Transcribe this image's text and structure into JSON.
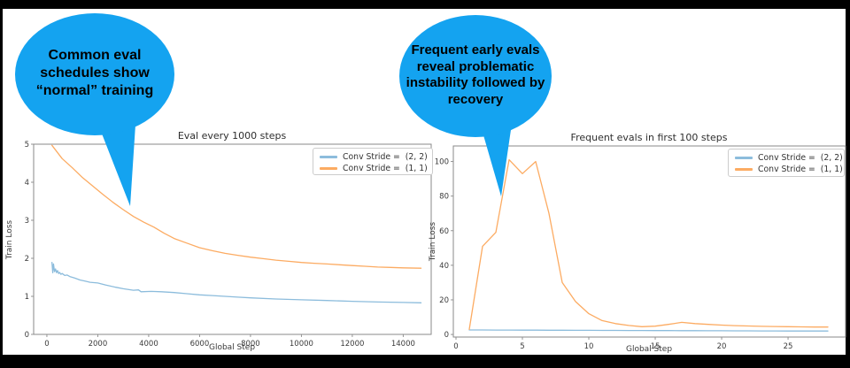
{
  "colors": {
    "frame": "#000000",
    "page_background": "#ffffff",
    "bubble_fill": "#14a3f0",
    "bubble_text": "#000000",
    "stride_2_2_line": "#8cbcdc",
    "stride_1_1_line": "#fcab62",
    "axis_text": "#3a3a3a",
    "spine": "#8a8a8a"
  },
  "bubbles": [
    {
      "lines": [
        "Common eval",
        "schedules show",
        "“normal” training"
      ]
    },
    {
      "lines": [
        "Frequent early evals",
        "reveal problematic",
        "instability followed by",
        "recovery"
      ]
    }
  ],
  "chart_data": [
    {
      "type": "line",
      "title": "Eval every 1000 steps",
      "xlabel": "Global Step",
      "ylabel": "Train Loss",
      "xlim": [
        -520,
        15100
      ],
      "ylim": [
        0,
        5
      ],
      "xticks": [
        0,
        2000,
        4000,
        6000,
        8000,
        10000,
        12000,
        14000
      ],
      "yticks": [
        0,
        1,
        2,
        3,
        4,
        5
      ],
      "grid": false,
      "legend_position": "upper right",
      "legend": [
        "Conv Stride =  (2, 2)",
        "Conv Stride =  (1, 1)"
      ],
      "series": [
        {
          "name": "Conv Stride = (2, 2)",
          "color_key": "stride_2_2_line",
          "x": [
            200,
            230,
            260,
            300,
            340,
            380,
            420,
            460,
            500,
            550,
            600,
            700,
            800,
            900,
            1000,
            1100,
            1300,
            1500,
            1700,
            2000,
            2300,
            2700,
            3000,
            3400,
            3600,
            3700,
            4100,
            4500,
            5000,
            5500,
            6000,
            6500,
            7000,
            7500,
            8000,
            9000,
            10000,
            11000,
            12000,
            13000,
            14000,
            14700
          ],
          "y": [
            1.89,
            1.62,
            1.85,
            1.65,
            1.72,
            1.62,
            1.68,
            1.6,
            1.63,
            1.58,
            1.6,
            1.55,
            1.56,
            1.52,
            1.5,
            1.48,
            1.43,
            1.4,
            1.37,
            1.35,
            1.3,
            1.24,
            1.2,
            1.16,
            1.17,
            1.12,
            1.13,
            1.12,
            1.1,
            1.07,
            1.04,
            1.02,
            1.0,
            0.98,
            0.96,
            0.93,
            0.91,
            0.89,
            0.87,
            0.85,
            0.84,
            0.83
          ]
        },
        {
          "name": "Conv Stride = (1, 1)",
          "color_key": "stride_1_1_line",
          "x": [
            200,
            600,
            1000,
            1400,
            1800,
            2200,
            2600,
            3000,
            3400,
            3800,
            4200,
            4600,
            5000,
            5500,
            6000,
            6500,
            7000,
            7500,
            8000,
            8500,
            9000,
            9500,
            10000,
            10500,
            11000,
            11500,
            12000,
            12500,
            13000,
            13500,
            14000,
            14700
          ],
          "y": [
            4.97,
            4.62,
            4.38,
            4.12,
            3.9,
            3.68,
            3.47,
            3.28,
            3.1,
            2.95,
            2.82,
            2.66,
            2.52,
            2.4,
            2.28,
            2.2,
            2.13,
            2.08,
            2.03,
            1.99,
            1.95,
            1.92,
            1.89,
            1.87,
            1.85,
            1.83,
            1.81,
            1.79,
            1.77,
            1.76,
            1.75,
            1.74
          ]
        }
      ]
    },
    {
      "type": "line",
      "title": "Frequent evals in first 100 steps",
      "xlabel": "Global Step",
      "ylabel": "Train Loss",
      "xlim": [
        -0.2,
        29.33
      ],
      "ylim": [
        -1.5,
        109
      ],
      "xticks": [
        0,
        5,
        10,
        15,
        20,
        25
      ],
      "yticks": [
        0,
        20,
        40,
        60,
        80,
        100
      ],
      "grid": false,
      "legend_position": "upper right",
      "legend": [
        "Conv Stride =  (2, 2)",
        "Conv Stride =  (1, 1)"
      ],
      "series": [
        {
          "name": "Conv Stride = (2, 2)",
          "color_key": "stride_2_2_line",
          "x": [
            1,
            2,
            3,
            4,
            5,
            6,
            7,
            8,
            9,
            10,
            11,
            12,
            13,
            14,
            15,
            16,
            17,
            18,
            19,
            20,
            21,
            22,
            23,
            24,
            25,
            26,
            27,
            28
          ],
          "y": [
            2.6,
            2.6,
            2.55,
            2.55,
            2.5,
            2.5,
            2.45,
            2.45,
            2.4,
            2.4,
            2.35,
            2.35,
            2.3,
            2.3,
            2.25,
            2.25,
            2.2,
            2.2,
            2.15,
            2.15,
            2.1,
            2.1,
            2.05,
            2.05,
            2.0,
            2.0,
            2.0,
            2.0
          ]
        },
        {
          "name": "Conv Stride = (1, 1)",
          "color_key": "stride_1_1_line",
          "x": [
            1,
            2,
            3,
            4,
            5,
            6,
            7,
            8,
            9,
            10,
            11,
            12,
            13,
            14,
            15,
            16,
            17,
            18,
            19,
            20,
            21,
            22,
            23,
            24,
            25,
            26,
            27,
            28
          ],
          "y": [
            2.9,
            51,
            59,
            101,
            93,
            100,
            70,
            30,
            19,
            12,
            8,
            6.3,
            5.2,
            4.5,
            4.8,
            5.8,
            7,
            6.3,
            5.8,
            5.4,
            5.1,
            4.9,
            4.7,
            4.6,
            4.5,
            4.4,
            4.3,
            4.3
          ]
        }
      ]
    }
  ]
}
